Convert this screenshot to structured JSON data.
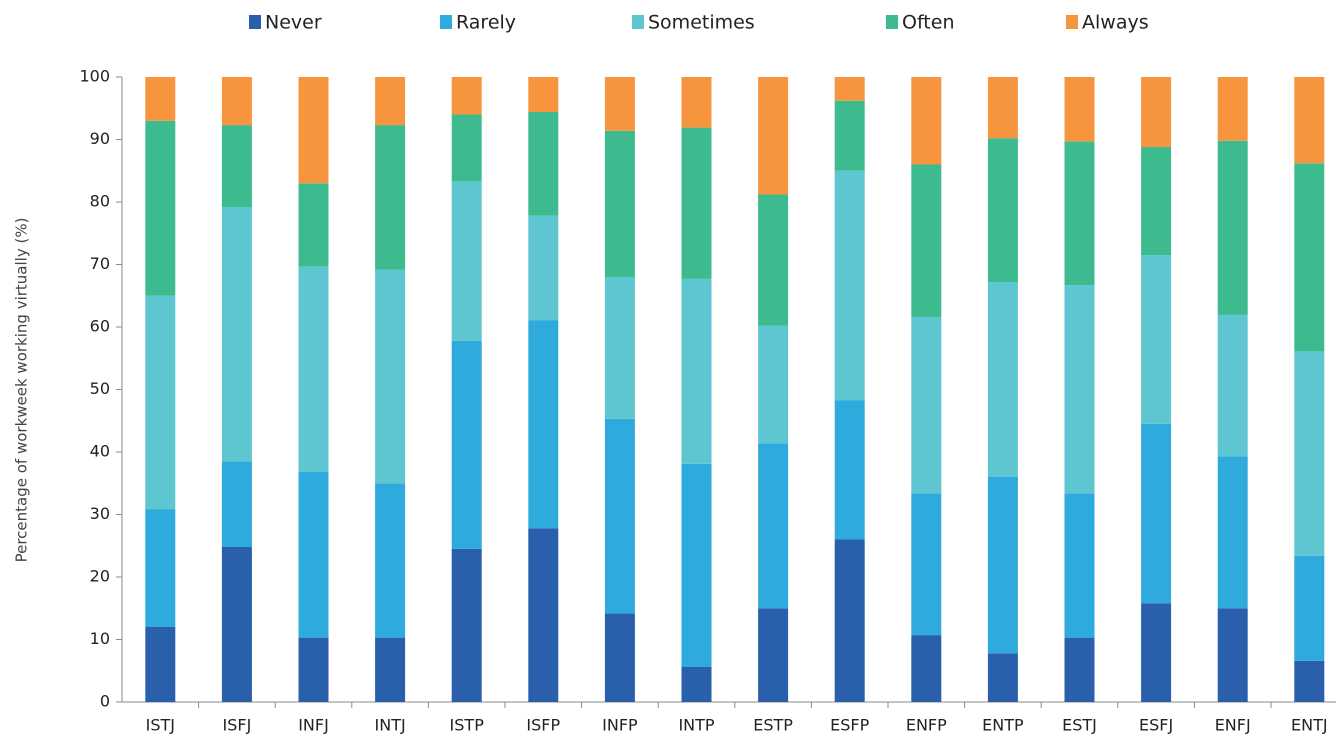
{
  "chart_data": {
    "type": "stacked_bar",
    "y_label": "Percentage of workweek working virtually (%)",
    "categories": [
      "ISTJ",
      "ISFJ",
      "INFJ",
      "INTJ",
      "ISTP",
      "ISFP",
      "INFP",
      "INTP",
      "ESTP",
      "ESFP",
      "ENFP",
      "ENTP",
      "ESTJ",
      "ESFJ",
      "ENFJ",
      "ENTJ"
    ],
    "series": [
      {
        "name": "Never",
        "color": "#2a5fab",
        "values": [
          12,
          24.8,
          10.3,
          10.3,
          24.5,
          27.8,
          14.2,
          5.6,
          15,
          26,
          10.7,
          7.8,
          10.3,
          15.8,
          15,
          6.6
        ]
      },
      {
        "name": "Rarely",
        "color": "#2eaadc",
        "values": [
          18.8,
          13.7,
          26.5,
          24.7,
          33.3,
          33.3,
          31.1,
          32.5,
          26.4,
          22.3,
          22.7,
          28.2,
          23.1,
          28.7,
          24.3,
          16.8
        ]
      },
      {
        "name": "Sometimes",
        "color": "#5ec6d0",
        "values": [
          34.2,
          40.7,
          32.9,
          34.2,
          25.5,
          16.7,
          22.7,
          29.6,
          18.8,
          36.7,
          28.2,
          31.2,
          33.3,
          27,
          22.7,
          32.7
        ]
      },
      {
        "name": "Often",
        "color": "#3dbb8f",
        "values": [
          28,
          13.1,
          13.3,
          23.1,
          10.7,
          16.6,
          23.4,
          24.2,
          21,
          11.2,
          24.4,
          23,
          23,
          17.3,
          27.8,
          30.1
        ]
      },
      {
        "name": "Always",
        "color": "#f7953f",
        "values": [
          7,
          7.7,
          17,
          7.7,
          6,
          5.6,
          8.6,
          8.1,
          18.8,
          3.8,
          14,
          9.8,
          10.3,
          11.2,
          10.2,
          13.8
        ]
      }
    ],
    "ylim": [
      0,
      100
    ],
    "yticks": [
      0,
      10,
      20,
      30,
      40,
      50,
      60,
      70,
      80,
      90,
      100
    ],
    "grid": false,
    "legend": "top"
  }
}
